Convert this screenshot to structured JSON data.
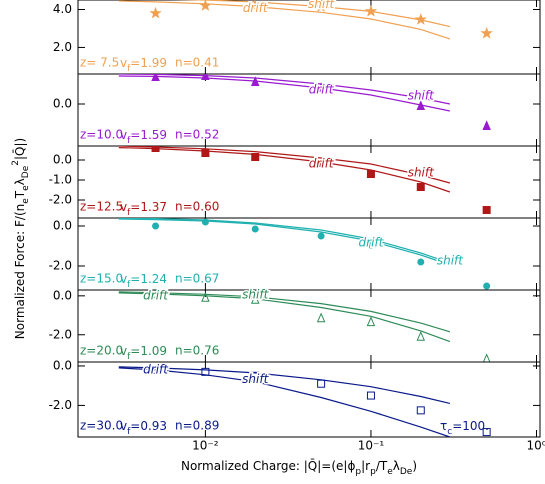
{
  "x_axis": {
    "xlim": [
      0.0017,
      1.05
    ],
    "log": true,
    "xticks": [
      {
        "value": 0.01,
        "label": "10⁻²"
      },
      {
        "value": 0.1,
        "label": "10⁻¹"
      },
      {
        "value": 1,
        "label": "10⁰"
      }
    ],
    "xlabel_parts": [
      {
        "text": "Normalized Charge: |Q̄|=(e|ϕ"
      },
      {
        "text": "p",
        "shift": "sub"
      },
      {
        "text": "|r"
      },
      {
        "text": "p",
        "shift": "sub"
      },
      {
        "text": "/T"
      },
      {
        "text": "e",
        "shift": "sub"
      },
      {
        "text": "λ"
      },
      {
        "text": "De",
        "shift": "sub"
      },
      {
        "text": ")"
      }
    ]
  },
  "ylabel_parts": [
    {
      "text": "Normalized Force: F/(n"
    },
    {
      "text": "e",
      "shift": "sub"
    },
    {
      "text": "T"
    },
    {
      "text": "e",
      "shift": "sub"
    },
    {
      "text": "λ"
    },
    {
      "text": "De",
      "shift": "sub"
    },
    {
      "text": "2",
      "shift": "super"
    },
    {
      "text": "|Q̄|)"
    }
  ],
  "annotation_parts": [
    {
      "text": "τ"
    },
    {
      "text": "c",
      "shift": "sub"
    },
    {
      "text": "=100."
    }
  ],
  "chart_data": [
    {
      "type": "line",
      "color": "#f0a050",
      "marker": "star",
      "marker_fill": true,
      "ylim": [
        0.6,
        4.5
      ],
      "yticks": [
        {
          "value": 2,
          "label": "2.0"
        },
        {
          "value": 4,
          "label": "4.0"
        }
      ],
      "z_label": "z= 7.5",
      "v_label": "v",
      "v_sub": "f",
      "v_value": "=1.99",
      "n_label": "n=0.41",
      "x": [
        0.003,
        0.005,
        0.01,
        0.02,
        0.05,
        0.1,
        0.2,
        0.3
      ],
      "series": [
        {
          "name": "drift",
          "values": [
            4.45,
            4.4,
            4.3,
            4.15,
            3.85,
            3.5,
            2.95,
            2.45
          ]
        },
        {
          "name": "shift",
          "values": [
            4.6,
            4.55,
            4.5,
            4.4,
            4.15,
            3.9,
            3.45,
            3.1
          ]
        }
      ],
      "points": {
        "x": [
          0.005,
          0.01,
          0.02,
          0.05,
          0.1,
          0.2,
          0.5
        ],
        "values": [
          3.8,
          4.2,
          4.2,
          4.15,
          3.9,
          3.47,
          2.74
        ]
      }
    },
    {
      "type": "line",
      "color": "#9a1ad0",
      "marker": "triangle",
      "marker_fill": true,
      "ylim": [
        -2.1,
        1.5
      ],
      "yticks": [
        {
          "value": 0,
          "label": "0.0"
        }
      ],
      "z_label": "z=10.0",
      "v_label": "v",
      "v_sub": "f",
      "v_value": "=1.59",
      "n_label": "n=0.52",
      "x": [
        0.003,
        0.005,
        0.01,
        0.02,
        0.05,
        0.1,
        0.2,
        0.3
      ],
      "series": [
        {
          "name": "drift",
          "values": [
            1.4,
            1.38,
            1.3,
            1.15,
            0.8,
            0.45,
            -0.05,
            -0.35
          ]
        },
        {
          "name": "shift",
          "values": [
            1.5,
            1.48,
            1.42,
            1.3,
            1.0,
            0.7,
            0.3,
            0.0
          ]
        }
      ],
      "points": {
        "x": [
          0.005,
          0.01,
          0.02,
          0.05,
          0.2,
          0.5
        ],
        "values": [
          1.35,
          1.4,
          1.1,
          0.8,
          -0.1,
          -1.1
        ]
      }
    },
    {
      "type": "line",
      "color": "#b01818",
      "marker": "square",
      "marker_fill": true,
      "ylim": [
        -2.9,
        0.7
      ],
      "yticks": [
        {
          "value": 0,
          "label": "0.0"
        },
        {
          "value": -1,
          "label": "-1.0"
        },
        {
          "value": -2,
          "label": "-2.0"
        }
      ],
      "z_label": "z=12.5",
      "v_label": "v",
      "v_sub": "f",
      "v_value": "=1.37",
      "n_label": "n=0.60",
      "x": [
        0.003,
        0.005,
        0.01,
        0.02,
        0.05,
        0.1,
        0.2,
        0.3
      ],
      "series": [
        {
          "name": "drift",
          "values": [
            0.62,
            0.57,
            0.45,
            0.28,
            -0.1,
            -0.5,
            -1.1,
            -1.6
          ]
        },
        {
          "name": "shift",
          "values": [
            0.7,
            0.65,
            0.56,
            0.42,
            0.1,
            -0.2,
            -0.75,
            -1.15
          ]
        }
      ],
      "points": {
        "x": [
          0.005,
          0.01,
          0.02,
          0.05,
          0.1,
          0.2,
          0.5
        ],
        "values": [
          0.6,
          0.35,
          0.15,
          -0.15,
          -0.7,
          -1.35,
          -2.5
        ]
      }
    },
    {
      "type": "line",
      "color": "#20b0b0",
      "marker": "circle",
      "marker_fill": true,
      "ylim": [
        -3.2,
        0.4
      ],
      "yticks": [
        {
          "value": 0,
          "label": "0.0"
        },
        {
          "value": -2,
          "label": "-2.0"
        }
      ],
      "z_label": "z=15.0",
      "v_label": "v",
      "v_sub": "f",
      "v_value": "=1.24",
      "n_label": "n=0.67",
      "x": [
        0.003,
        0.005,
        0.01,
        0.02,
        0.05,
        0.1,
        0.2,
        0.3
      ],
      "series": [
        {
          "name": "drift",
          "values": [
            0.35,
            0.32,
            0.25,
            0.1,
            -0.3,
            -0.75,
            -1.45,
            -1.95
          ]
        },
        {
          "name": "shift",
          "values": [
            0.4,
            0.37,
            0.3,
            0.15,
            -0.2,
            -0.65,
            -1.35,
            -1.85
          ]
        }
      ],
      "points": {
        "x": [
          0.005,
          0.01,
          0.02,
          0.05,
          0.1,
          0.2,
          0.5
        ],
        "values": [
          0.0,
          0.2,
          -0.15,
          -0.5,
          -0.95,
          -1.8,
          -3.0
        ]
      }
    },
    {
      "type": "line",
      "color": "#2e8b57",
      "marker": "triangle",
      "marker_fill": false,
      "ylim": [
        -3.4,
        0.3
      ],
      "yticks": [
        {
          "value": 0,
          "label": "0.0"
        },
        {
          "value": -2,
          "label": "-2.0"
        }
      ],
      "z_label": "z=20.0",
      "v_label": "v",
      "v_sub": "f",
      "v_value": "=1.09",
      "n_label": "n=0.76",
      "x": [
        0.003,
        0.005,
        0.01,
        0.02,
        0.05,
        0.1,
        0.2,
        0.3
      ],
      "series": [
        {
          "name": "drift",
          "values": [
            0.15,
            0.1,
            0.0,
            -0.15,
            -0.6,
            -1.05,
            -1.8,
            -2.35
          ]
        },
        {
          "name": "shift",
          "values": [
            0.2,
            0.16,
            0.08,
            -0.05,
            -0.4,
            -0.8,
            -1.4,
            -1.85
          ]
        }
      ],
      "points": {
        "x": [
          0.005,
          0.01,
          0.02,
          0.05,
          0.1,
          0.2,
          0.5
        ],
        "values": [
          0.1,
          -0.1,
          -0.2,
          -1.15,
          -1.35,
          -2.1,
          -3.25
        ]
      }
    },
    {
      "type": "line",
      "color": "#0a1a8a",
      "marker": "square",
      "marker_fill": false,
      "ylim": [
        -3.6,
        0.2
      ],
      "yticks": [
        {
          "value": 0,
          "label": "0.0"
        },
        {
          "value": -2,
          "label": "-2.0"
        }
      ],
      "z_label": "z=30.0",
      "v_label": "v",
      "v_sub": "f",
      "v_value": "=0.93",
      "n_label": "n=0.89",
      "x": [
        0.003,
        0.005,
        0.01,
        0.02,
        0.05,
        0.1,
        0.2,
        0.3
      ],
      "series": [
        {
          "name": "drift",
          "values": [
            -0.05,
            -0.1,
            -0.2,
            -0.35,
            -0.7,
            -1.05,
            -1.55,
            -1.9
          ]
        },
        {
          "name": "shift",
          "values": [
            -0.1,
            -0.2,
            -0.45,
            -0.8,
            -1.6,
            -2.3,
            -3.1,
            -3.6
          ]
        }
      ],
      "points": {
        "x": [
          0.005,
          0.01,
          0.02,
          0.05,
          0.1,
          0.2,
          0.5
        ],
        "values": [
          -0.2,
          -0.3,
          -0.5,
          -0.9,
          -1.5,
          -2.25,
          -3.35
        ]
      }
    }
  ]
}
